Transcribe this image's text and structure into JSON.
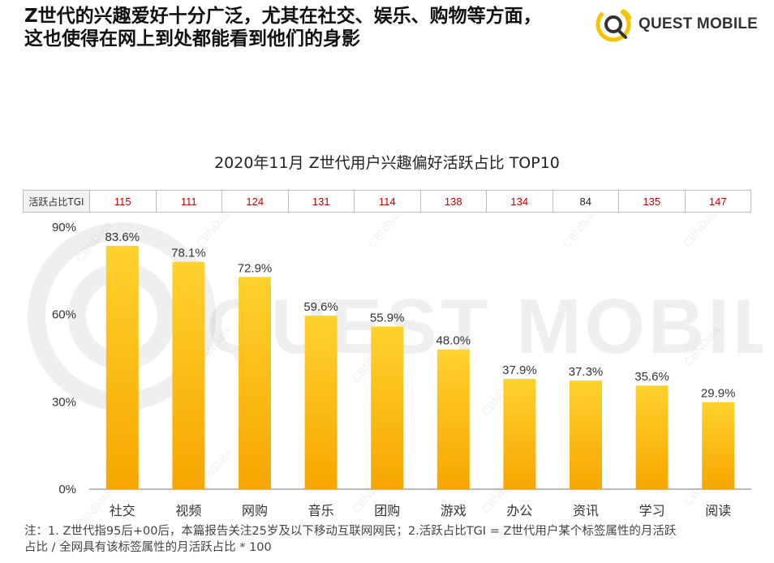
{
  "header": {
    "title_line1": "Z世代的兴趣爱好十分广泛，尤其在社交、娱乐、购物等方面，",
    "title_line2": "这也使得在网上到处都能看到他们的身影"
  },
  "logo": {
    "text": "QUEST MOBILE",
    "icon": "questmobile-logo-icon",
    "color": "#F5C400"
  },
  "watermark": {
    "big_text": "QUEST MOBILE",
    "small_text": "CBNData"
  },
  "tgi": {
    "label": "活跃占比TGI",
    "values": [
      115,
      111,
      124,
      131,
      114,
      138,
      134,
      84,
      135,
      147
    ],
    "colors": [
      "#C00000",
      "#C00000",
      "#C00000",
      "#C00000",
      "#C00000",
      "#C00000",
      "#C00000",
      "#222222",
      "#C00000",
      "#C00000"
    ]
  },
  "chart_data": {
    "type": "bar",
    "title": "2020年11月 Z世代用户兴趣偏好活跃占比 TOP10",
    "categories": [
      "社交",
      "视频",
      "网购",
      "音乐",
      "团购",
      "游戏",
      "办公",
      "资讯",
      "学习",
      "阅读"
    ],
    "values": [
      83.6,
      78.1,
      72.9,
      59.6,
      55.9,
      48.0,
      37.9,
      37.3,
      35.6,
      29.9
    ],
    "value_labels": [
      "83.6%",
      "78.1%",
      "72.9%",
      "59.6%",
      "55.9%",
      "48.0%",
      "37.9%",
      "37.3%",
      "35.6%",
      "29.9%"
    ],
    "ylim": [
      0,
      90
    ],
    "yticks": [
      0,
      30,
      60,
      90
    ],
    "ytick_labels": [
      "0%",
      "30%",
      "60%",
      "90%"
    ],
    "xlabel": "",
    "ylabel": "",
    "grid": false,
    "bar_color_top": "#FFD22E",
    "bar_color_bottom": "#F7A600"
  },
  "footnote": {
    "line1": "注：1. Z世代指95后+00后，本篇报告关注25岁及以下移动互联网网民；2.活跃占比TGI = Z世代用户某个标签属性的月活跃",
    "line2": "占比 / 全网具有该标签属性的月活跃占比 * 100"
  }
}
